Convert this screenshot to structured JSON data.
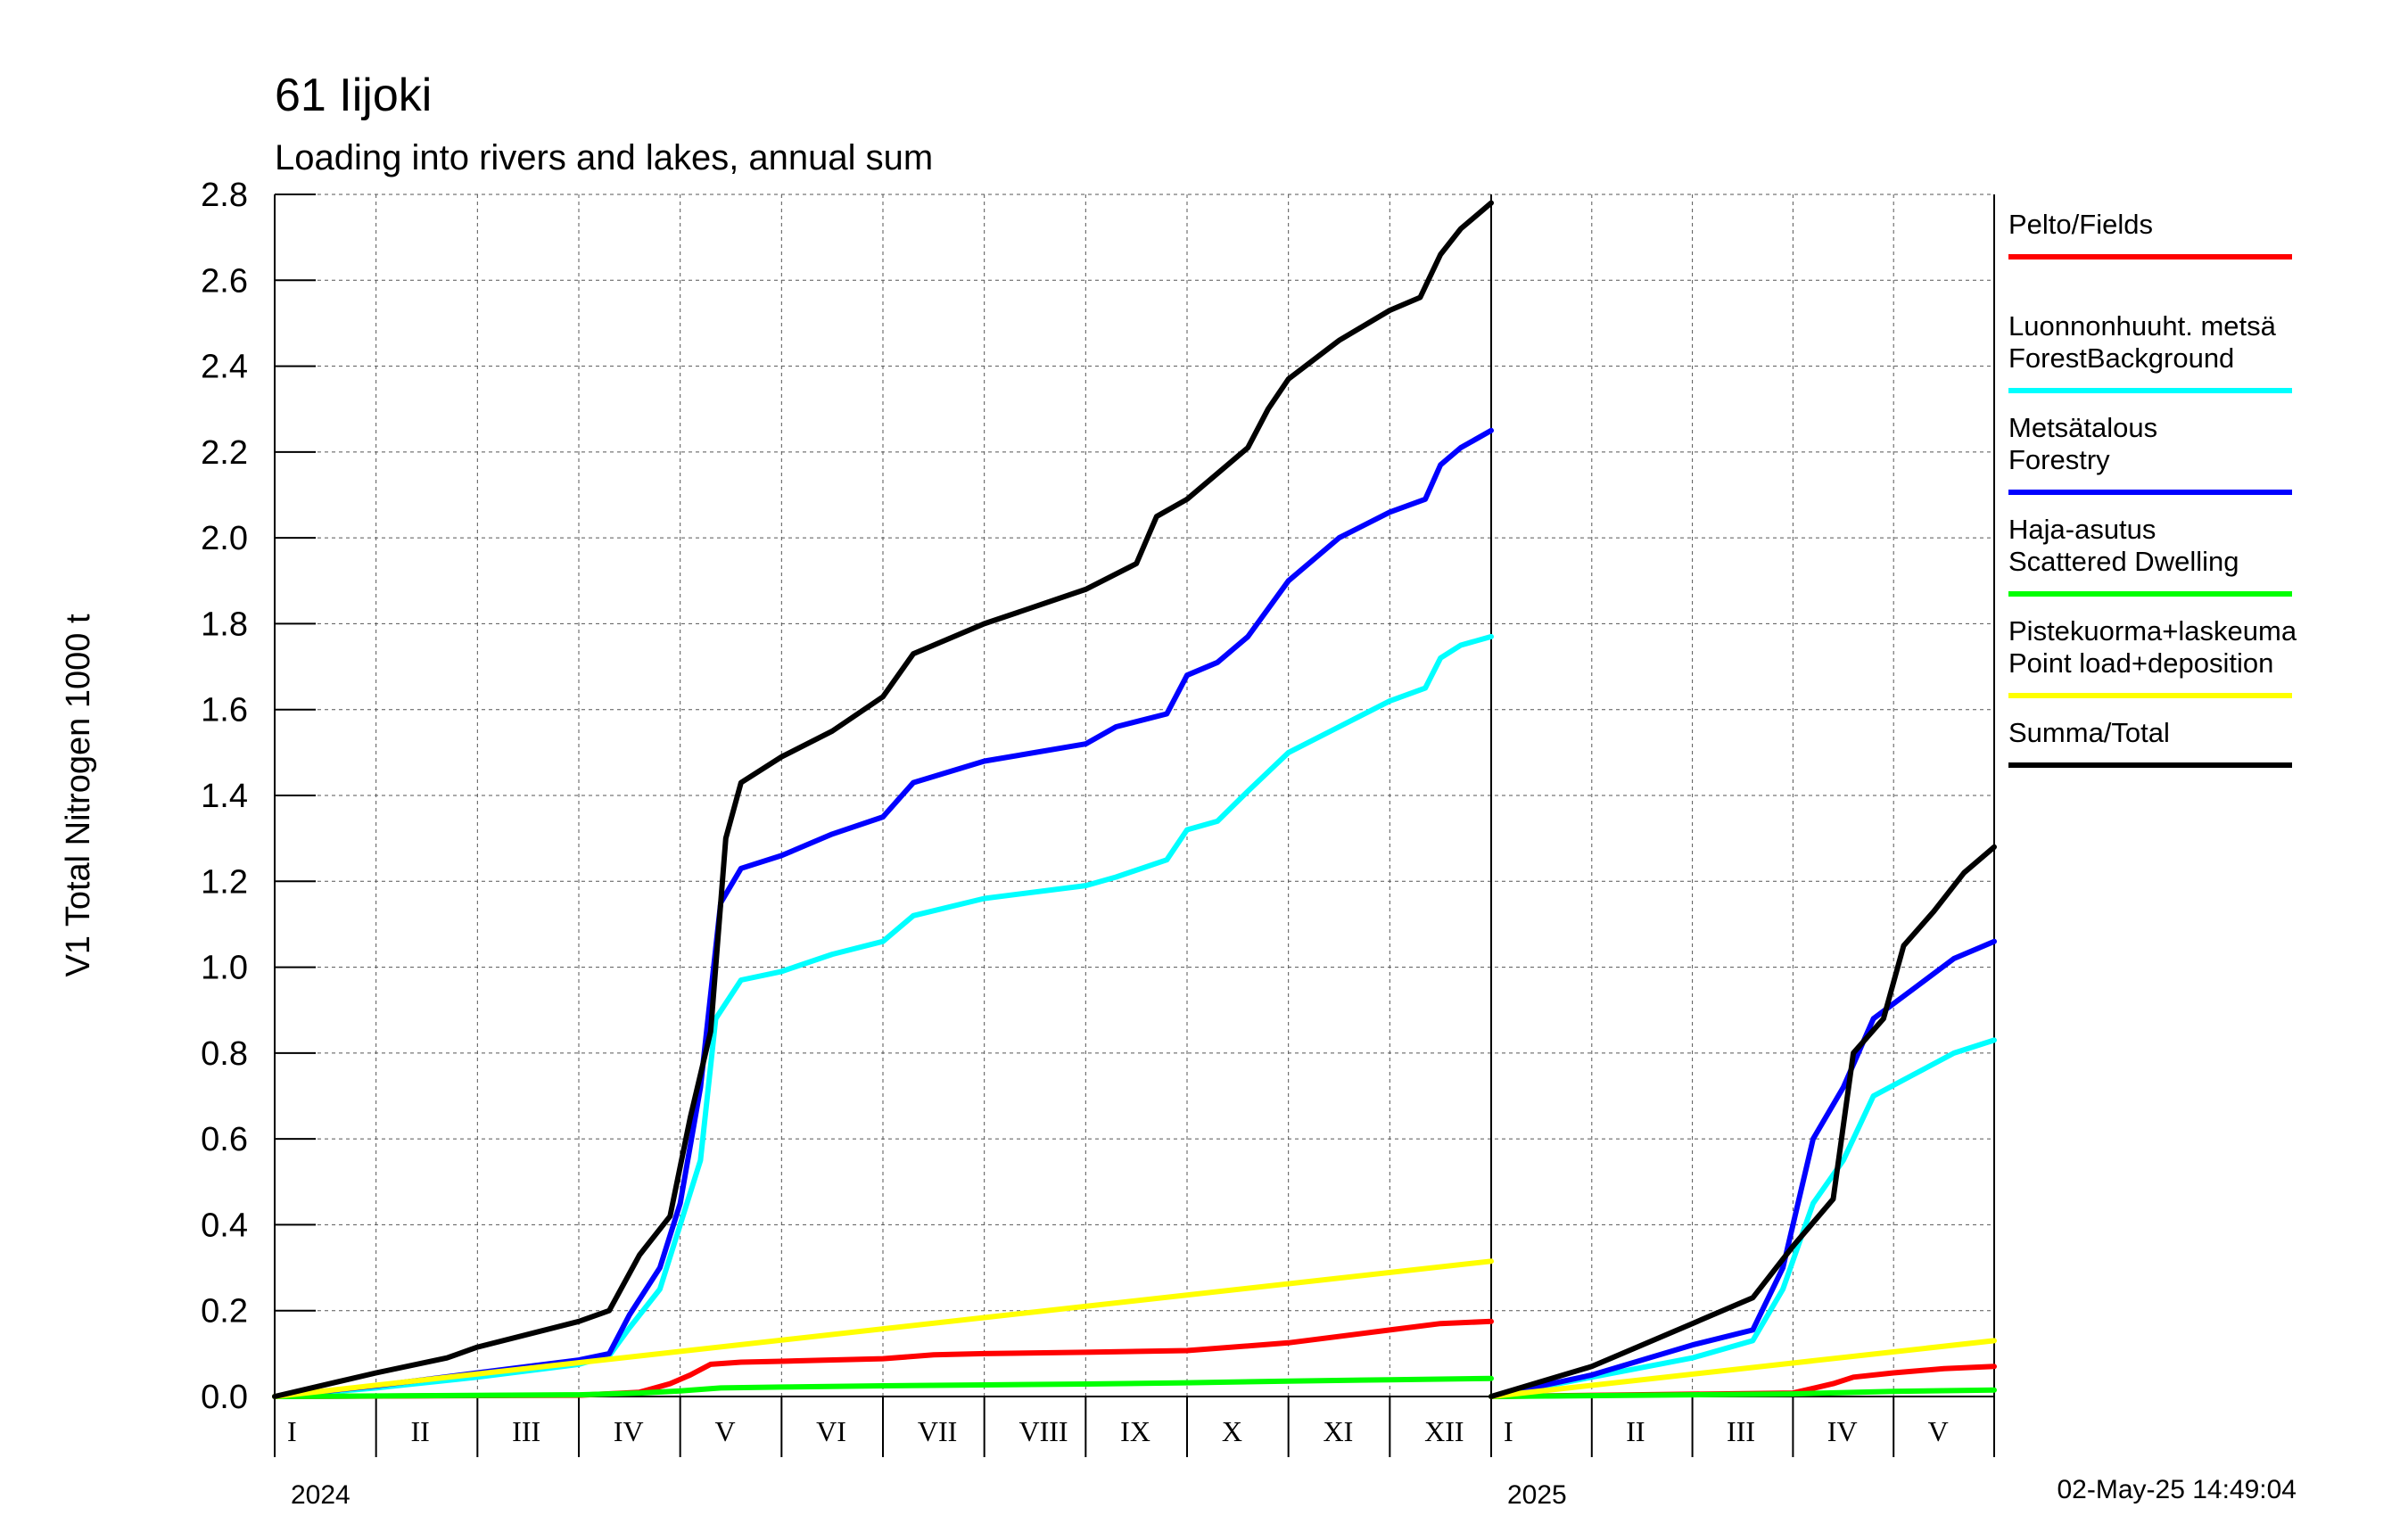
{
  "title": "61 Iijoki",
  "subtitle": "Loading into rivers and lakes, annual sum",
  "timestamp": "02-May-25 14:49:04",
  "chart_data": {
    "type": "line",
    "ylabel": "V1 Total Nitrogen 1000 t",
    "ylim": [
      0,
      2.8
    ],
    "y_ticks": [
      "0.0",
      "0.2",
      "0.4",
      "0.6",
      "0.8",
      "1.0",
      "1.2",
      "1.4",
      "1.6",
      "1.8",
      "2.0",
      "2.2",
      "2.4",
      "2.6",
      "2.8"
    ],
    "grid": true,
    "legend_position": "right",
    "panels": [
      {
        "year": "2024",
        "months": [
          "I",
          "II",
          "III",
          "IV",
          "V",
          "VI",
          "VII",
          "VIII",
          "IX",
          "X",
          "XI",
          "XII"
        ],
        "x_range_months": [
          0,
          12
        ],
        "series": [
          {
            "name": "Pelto/Fields",
            "color": "#ff0000",
            "points": [
              [
                0,
                0
              ],
              [
                3,
                0.003
              ],
              [
                3.6,
                0.01
              ],
              [
                3.9,
                0.03
              ],
              [
                4.1,
                0.05
              ],
              [
                4.3,
                0.075
              ],
              [
                4.6,
                0.08
              ],
              [
                5,
                0.082
              ],
              [
                6,
                0.088
              ],
              [
                6.5,
                0.097
              ],
              [
                7,
                0.1
              ],
              [
                8,
                0.103
              ],
              [
                9,
                0.107
              ],
              [
                10,
                0.125
              ],
              [
                11,
                0.155
              ],
              [
                11.5,
                0.17
              ],
              [
                12,
                0.175
              ]
            ]
          },
          {
            "name": "Luonnonhuuht. metsä",
            "name2": "ForestBackground",
            "color": "#00ffff",
            "points": [
              [
                0,
                0
              ],
              [
                1,
                0.02
              ],
              [
                2,
                0.045
              ],
              [
                3,
                0.075
              ],
              [
                3.3,
                0.095
              ],
              [
                3.5,
                0.16
              ],
              [
                3.8,
                0.25
              ],
              [
                4,
                0.4
              ],
              [
                4.2,
                0.55
              ],
              [
                4.35,
                0.88
              ],
              [
                4.6,
                0.97
              ],
              [
                5,
                0.99
              ],
              [
                5.5,
                1.03
              ],
              [
                6,
                1.06
              ],
              [
                6.3,
                1.12
              ],
              [
                7,
                1.16
              ],
              [
                8,
                1.19
              ],
              [
                8.3,
                1.21
              ],
              [
                8.8,
                1.25
              ],
              [
                9,
                1.32
              ],
              [
                9.3,
                1.34
              ],
              [
                9.6,
                1.41
              ],
              [
                10,
                1.5
              ],
              [
                10.5,
                1.56
              ],
              [
                11,
                1.62
              ],
              [
                11.35,
                1.65
              ],
              [
                11.5,
                1.72
              ],
              [
                11.7,
                1.75
              ],
              [
                12,
                1.77
              ]
            ]
          },
          {
            "name": "Metsätalous",
            "name2": "Forestry",
            "color": "#0000ff",
            "points": [
              [
                0,
                0
              ],
              [
                1,
                0.025
              ],
              [
                2,
                0.055
              ],
              [
                3,
                0.085
              ],
              [
                3.3,
                0.1
              ],
              [
                3.5,
                0.19
              ],
              [
                3.8,
                0.3
              ],
              [
                4,
                0.45
              ],
              [
                4.2,
                0.72
              ],
              [
                4.4,
                1.15
              ],
              [
                4.6,
                1.23
              ],
              [
                5,
                1.26
              ],
              [
                5.5,
                1.31
              ],
              [
                6,
                1.35
              ],
              [
                6.3,
                1.43
              ],
              [
                7,
                1.48
              ],
              [
                8,
                1.52
              ],
              [
                8.3,
                1.56
              ],
              [
                8.8,
                1.59
              ],
              [
                9,
                1.68
              ],
              [
                9.3,
                1.71
              ],
              [
                9.6,
                1.77
              ],
              [
                10,
                1.9
              ],
              [
                10.5,
                2.0
              ],
              [
                11,
                2.06
              ],
              [
                11.35,
                2.09
              ],
              [
                11.5,
                2.17
              ],
              [
                11.7,
                2.21
              ],
              [
                12,
                2.25
              ]
            ]
          },
          {
            "name": "Haja-asutus",
            "name2": "Scattered Dwelling",
            "color": "#00ff00",
            "points": [
              [
                0,
                0
              ],
              [
                3,
                0.004
              ],
              [
                3.6,
                0.008
              ],
              [
                4,
                0.013
              ],
              [
                4.4,
                0.02
              ],
              [
                5,
                0.022
              ],
              [
                6,
                0.025
              ],
              [
                7,
                0.027
              ],
              [
                8,
                0.029
              ],
              [
                9,
                0.032
              ],
              [
                10,
                0.036
              ],
              [
                11,
                0.039
              ],
              [
                12,
                0.042
              ]
            ]
          },
          {
            "name": "Pistekuorma+laskeuma",
            "name2": "Point load+deposition",
            "color": "#ffff00",
            "points": [
              [
                0,
                0
              ],
              [
                12,
                0.315
              ]
            ]
          },
          {
            "name": "Summa/Total",
            "color": "#000000",
            "points": [
              [
                0,
                0
              ],
              [
                1,
                0.055
              ],
              [
                1.7,
                0.09
              ],
              [
                2,
                0.115
              ],
              [
                3,
                0.175
              ],
              [
                3.3,
                0.2
              ],
              [
                3.6,
                0.33
              ],
              [
                3.9,
                0.42
              ],
              [
                4.1,
                0.65
              ],
              [
                4.3,
                0.85
              ],
              [
                4.45,
                1.3
              ],
              [
                4.6,
                1.43
              ],
              [
                5,
                1.49
              ],
              [
                5.5,
                1.55
              ],
              [
                6,
                1.63
              ],
              [
                6.3,
                1.73
              ],
              [
                7,
                1.8
              ],
              [
                7.5,
                1.84
              ],
              [
                8,
                1.88
              ],
              [
                8.5,
                1.94
              ],
              [
                8.7,
                2.05
              ],
              [
                9,
                2.09
              ],
              [
                9.3,
                2.15
              ],
              [
                9.6,
                2.21
              ],
              [
                9.8,
                2.3
              ],
              [
                10,
                2.37
              ],
              [
                10.5,
                2.46
              ],
              [
                11,
                2.53
              ],
              [
                11.3,
                2.56
              ],
              [
                11.5,
                2.66
              ],
              [
                11.7,
                2.72
              ],
              [
                12,
                2.78
              ]
            ]
          }
        ]
      },
      {
        "year": "2025",
        "months": [
          "I",
          "II",
          "III",
          "IV",
          "V"
        ],
        "x_range_months": [
          0,
          5
        ],
        "series": [
          {
            "name": "Pelto/Fields",
            "color": "#ff0000",
            "points": [
              [
                0,
                0
              ],
              [
                3,
                0.008
              ],
              [
                3.4,
                0.03
              ],
              [
                3.6,
                0.045
              ],
              [
                4,
                0.055
              ],
              [
                4.5,
                0.065
              ],
              [
                5,
                0.07
              ]
            ]
          },
          {
            "name": "Luonnonhuuht. metsä",
            "name2": "ForestBackground",
            "color": "#00ffff",
            "points": [
              [
                0,
                0
              ],
              [
                1,
                0.045
              ],
              [
                2,
                0.09
              ],
              [
                2.6,
                0.13
              ],
              [
                2.9,
                0.25
              ],
              [
                3.2,
                0.45
              ],
              [
                3.5,
                0.55
              ],
              [
                3.8,
                0.7
              ],
              [
                4.2,
                0.75
              ],
              [
                4.6,
                0.8
              ],
              [
                5,
                0.83
              ]
            ]
          },
          {
            "name": "Metsätalous",
            "name2": "Forestry",
            "color": "#0000ff",
            "points": [
              [
                0,
                0
              ],
              [
                1,
                0.05
              ],
              [
                2,
                0.12
              ],
              [
                2.6,
                0.155
              ],
              [
                2.9,
                0.3
              ],
              [
                3.2,
                0.6
              ],
              [
                3.5,
                0.72
              ],
              [
                3.8,
                0.88
              ],
              [
                4.2,
                0.95
              ],
              [
                4.6,
                1.02
              ],
              [
                5,
                1.06
              ]
            ]
          },
          {
            "name": "Haja-asutus",
            "name2": "Scattered Dwelling",
            "color": "#00ff00",
            "points": [
              [
                0,
                0
              ],
              [
                3,
                0.006
              ],
              [
                4,
                0.012
              ],
              [
                5,
                0.015
              ]
            ]
          },
          {
            "name": "Pistekuorma+laskeuma",
            "name2": "Point load+deposition",
            "color": "#ffff00",
            "points": [
              [
                0,
                0
              ],
              [
                5,
                0.13
              ]
            ]
          },
          {
            "name": "Summa/Total",
            "color": "#000000",
            "points": [
              [
                0,
                0
              ],
              [
                1,
                0.07
              ],
              [
                2,
                0.17
              ],
              [
                2.6,
                0.23
              ],
              [
                3,
                0.35
              ],
              [
                3.4,
                0.46
              ],
              [
                3.6,
                0.8
              ],
              [
                3.9,
                0.88
              ],
              [
                4.1,
                1.05
              ],
              [
                4.4,
                1.13
              ],
              [
                4.7,
                1.22
              ],
              [
                5,
                1.28
              ]
            ]
          }
        ]
      }
    ]
  },
  "legend": [
    {
      "line1": "Pelto/Fields",
      "line2": "",
      "color": "#ff0000"
    },
    {
      "line1": "Luonnonhuuht. metsä",
      "line2": "ForestBackground",
      "color": "#00ffff"
    },
    {
      "line1": "Metsätalous",
      "line2": "Forestry",
      "color": "#0000ff"
    },
    {
      "line1": "Haja-asutus",
      "line2": "Scattered Dwelling",
      "color": "#00ff00"
    },
    {
      "line1": "Pistekuorma+laskeuma",
      "line2": "Point load+deposition",
      "color": "#ffff00"
    },
    {
      "line1": "Summa/Total",
      "line2": "",
      "color": "#000000"
    }
  ]
}
